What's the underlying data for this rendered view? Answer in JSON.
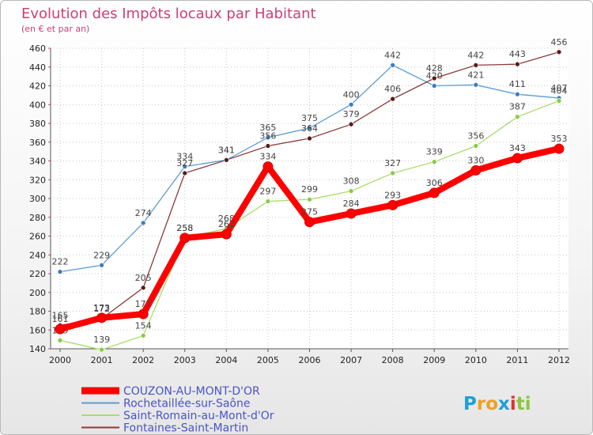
{
  "chart_data": {
    "type": "line",
    "title": "Evolution des Impôts locaux par Habitant",
    "subtitle": "(en € et par an)",
    "x": [
      "2000",
      "2001",
      "2002",
      "2003",
      "2004",
      "2005",
      "2006",
      "2007",
      "2008",
      "2009",
      "2010",
      "2011",
      "2012"
    ],
    "ylim": [
      140,
      460
    ],
    "yticks": [
      140,
      160,
      180,
      200,
      220,
      240,
      260,
      280,
      300,
      320,
      340,
      360,
      380,
      400,
      420,
      440,
      460
    ],
    "grid": true,
    "legend_position": "bottom-left",
    "series": [
      {
        "name": "Rochetaillée-sur-Saône",
        "color": "#5b9bd5",
        "marker": "#3e7cc0",
        "values": [
          222,
          229,
          274,
          334,
          341,
          365,
          375,
          400,
          442,
          420,
          421,
          411,
          407
        ]
      },
      {
        "name": "Saint-Romain-au-Mont-d'Or",
        "color": "#a9dc6b",
        "marker": "#86cc43",
        "values": [
          149,
          139,
          154,
          258,
          268,
          297,
          299,
          308,
          327,
          339,
          356,
          387,
          404
        ]
      },
      {
        "name": "Fontaines-Saint-Martin",
        "color": "#8b3a3a",
        "marker": "#5a1a1a",
        "values": [
          165,
          172,
          205,
          327,
          341,
          356,
          364,
          379,
          406,
          428,
          442,
          443,
          456
        ]
      },
      {
        "name": "COUZON-AU-MONT-D'OR",
        "color": "#ff0000",
        "marker": "#ff0000",
        "bold": true,
        "values": [
          161,
          173,
          177,
          258,
          262,
          334,
          275,
          284,
          293,
          306,
          330,
          343,
          353
        ]
      }
    ]
  },
  "legend_order": [
    3,
    0,
    1,
    2
  ],
  "brand": {
    "text": "Proxiti",
    "letters": [
      "P",
      "r",
      "o",
      "x",
      "i",
      "t",
      "i"
    ],
    "colors": [
      "#1ea0d8",
      "#f0a020",
      "#f0a020",
      "#1ea0d8",
      "#e03030",
      "#8cc63f",
      "#8cc63f"
    ]
  }
}
